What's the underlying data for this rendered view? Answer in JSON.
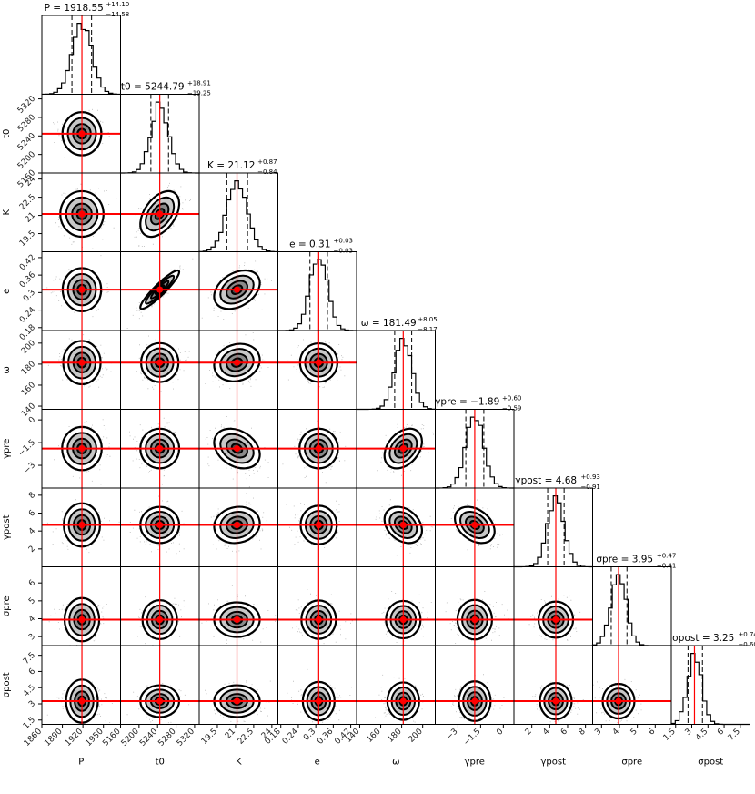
{
  "chart_data": {
    "type": "corner",
    "truth_line_color": "#ff0000",
    "contour_color": "#000000",
    "scatter_color": "#7f7f7f",
    "parameters": [
      {
        "name": "P",
        "label": "P",
        "median": 1918.55,
        "plus": 14.1,
        "minus": 14.58,
        "range": [
          1860,
          1975
        ],
        "ticks": [
          1860,
          1890,
          1920,
          1950
        ],
        "title": "P = 1918.55",
        "title_plus": "+14.10",
        "title_minus": "−14.58"
      },
      {
        "name": "t0",
        "label": "t0",
        "median": 5244.79,
        "plus": 18.91,
        "minus": 19.25,
        "range": [
          5160,
          5330
        ],
        "ticks": [
          5160,
          5200,
          5240,
          5280,
          5320
        ],
        "title": "t0 = 5244.79",
        "title_plus": "+18.91",
        "title_minus": "−19.25"
      },
      {
        "name": "K",
        "label": "K",
        "median": 21.12,
        "plus": 0.87,
        "minus": 0.84,
        "range": [
          18.0,
          24.5
        ],
        "ticks": [
          19.5,
          21.0,
          22.5,
          24.0
        ],
        "title": "K = 21.12",
        "title_plus": "+0.87",
        "title_minus": "−0.84"
      },
      {
        "name": "e",
        "label": "e",
        "median": 0.31,
        "plus": 0.03,
        "minus": 0.03,
        "range": [
          0.17,
          0.44
        ],
        "ticks": [
          0.18,
          0.24,
          0.3,
          0.36,
          0.42
        ],
        "title": "e = 0.31",
        "title_plus": "+0.03",
        "title_minus": "−0.03"
      },
      {
        "name": "omega",
        "label": "ω",
        "median": 181.49,
        "plus": 8.05,
        "minus": 8.17,
        "range": [
          137,
          212
        ],
        "ticks": [
          140,
          160,
          180,
          200
        ],
        "title": "ω = 181.49",
        "title_plus": "+8.05",
        "title_minus": "−8.17"
      },
      {
        "name": "gamma_pre",
        "label": "γpre",
        "median": -1.89,
        "plus": 0.6,
        "minus": 0.59,
        "range": [
          -4.5,
          0.7
        ],
        "ticks": [
          -3.0,
          -1.5,
          0.0
        ],
        "title": "γpre = −1.89",
        "title_plus": "+0.60",
        "title_minus": "−0.59"
      },
      {
        "name": "gamma_post",
        "label": "γpost",
        "median": 4.68,
        "plus": 0.93,
        "minus": 0.91,
        "range": [
          0,
          8.8
        ],
        "ticks": [
          2,
          4,
          6,
          8
        ],
        "title": "γpost = 4.68",
        "title_plus": "+0.93",
        "title_minus": "−0.91"
      },
      {
        "name": "sigma_pre",
        "label": "σpre",
        "median": 3.95,
        "plus": 0.47,
        "minus": 0.41,
        "range": [
          2.5,
          6.9
        ],
        "ticks": [
          3,
          4,
          5,
          6
        ],
        "title": "σpre = 3.95",
        "title_plus": "+0.47",
        "title_minus": "−0.41"
      },
      {
        "name": "sigma_post",
        "label": "σpost",
        "median": 3.25,
        "plus": 0.74,
        "minus": 0.6,
        "range": [
          1.1,
          8.4
        ],
        "ticks": [
          1.5,
          3.0,
          4.5,
          6.0,
          7.5
        ],
        "title": "σpost = 3.25",
        "title_plus": "+0.74",
        "title_minus": "−0.60"
      }
    ],
    "correlations": [
      {
        "pair": [
          "K",
          "t0"
        ],
        "rho": 0.45
      },
      {
        "pair": [
          "e",
          "t0"
        ],
        "rho": 0.92
      },
      {
        "pair": [
          "e",
          "K"
        ],
        "rho": 0.35
      },
      {
        "pair": [
          "omega",
          "K"
        ],
        "rho": 0.15
      },
      {
        "pair": [
          "gamma_pre",
          "K"
        ],
        "rho": -0.3
      },
      {
        "pair": [
          "gamma_pre",
          "omega"
        ],
        "rho": 0.35
      },
      {
        "pair": [
          "gamma_post",
          "omega"
        ],
        "rho": -0.3
      },
      {
        "pair": [
          "gamma_post",
          "gamma_pre"
        ],
        "rho": -0.35
      },
      {
        "pair": [
          "gamma_post",
          "K"
        ],
        "rho": 0.1
      }
    ],
    "grid": false
  }
}
